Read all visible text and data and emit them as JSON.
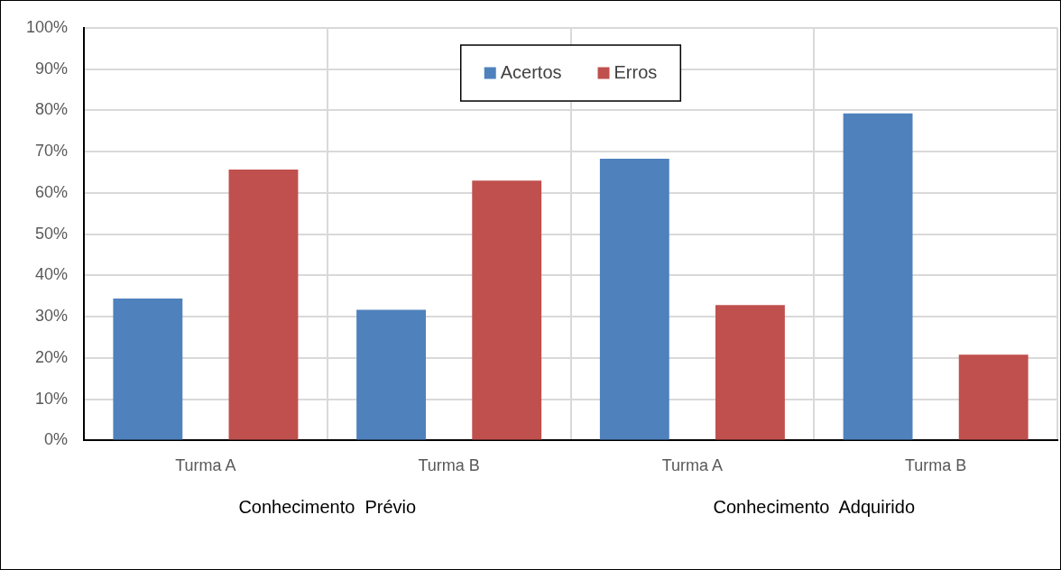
{
  "chart_data": {
    "type": "bar",
    "categories": [
      "Turma A",
      "Turma B",
      "Turma A",
      "Turma B"
    ],
    "series": [
      {
        "name": "Acertos",
        "color": "#4f81bd",
        "values": [
          34.4,
          31.7,
          68.3,
          79.3
        ]
      },
      {
        "name": "Erros",
        "color": "#c0504d",
        "values": [
          65.7,
          63.0,
          32.8,
          20.8
        ]
      }
    ],
    "ylim": [
      0,
      100
    ],
    "yticks": [
      {
        "value": 0,
        "label": "0%"
      },
      {
        "value": 10,
        "label": "10%"
      },
      {
        "value": 20,
        "label": "20%"
      },
      {
        "value": 30,
        "label": "30%"
      },
      {
        "value": 40,
        "label": "40%"
      },
      {
        "value": 50,
        "label": "50%"
      },
      {
        "value": 60,
        "label": "60%"
      },
      {
        "value": 70,
        "label": "70%"
      },
      {
        "value": 80,
        "label": "80%"
      },
      {
        "value": 90,
        "label": "90%"
      },
      {
        "value": 100,
        "label": "100%"
      }
    ],
    "annotations": [
      "Conhecimento  Prévio",
      "Conhecimento  Adquirido"
    ],
    "grid": true,
    "legend": "top"
  }
}
